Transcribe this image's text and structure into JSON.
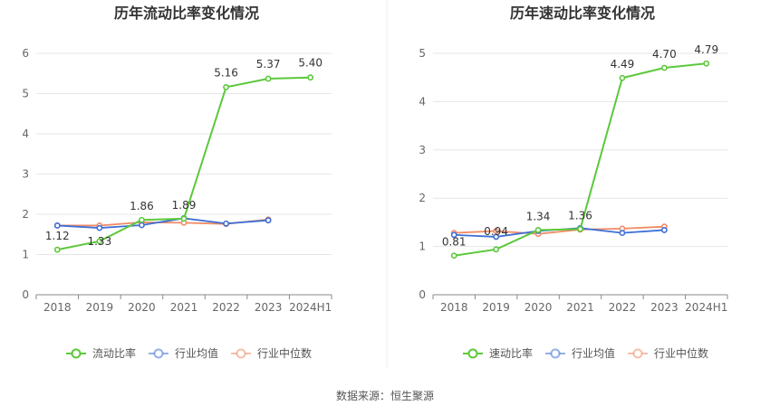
{
  "source": "数据来源：恒生聚源",
  "chart_data": [
    {
      "type": "line",
      "title": "历年流动比率变化情况",
      "categories": [
        "2018",
        "2019",
        "2020",
        "2021",
        "2022",
        "2023",
        "2024H1"
      ],
      "ylim": [
        0,
        6
      ],
      "yticks": [
        "0",
        "1",
        "2",
        "3",
        "4",
        "5",
        "6"
      ],
      "grid": true,
      "legend_position": "bottom",
      "series": [
        {
          "name": "流动比率",
          "color": "#5cc83a",
          "values": [
            1.12,
            1.33,
            1.86,
            1.89,
            5.16,
            5.37,
            5.4
          ],
          "labels": [
            "1.12",
            "1.33",
            "1.86",
            "1.89",
            "5.16",
            "5.37",
            "5.40"
          ]
        },
        {
          "name": "行业均值",
          "color": "#3d6fd6",
          "values": [
            1.72,
            1.66,
            1.73,
            1.9,
            1.77,
            1.85,
            null
          ]
        },
        {
          "name": "行业中位数",
          "color": "#f08a64",
          "values": [
            1.72,
            1.72,
            1.8,
            1.79,
            1.76,
            1.87,
            null
          ]
        }
      ]
    },
    {
      "type": "line",
      "title": "历年速动比率变化情况",
      "categories": [
        "2018",
        "2019",
        "2020",
        "2021",
        "2022",
        "2023",
        "2024H1"
      ],
      "ylim": [
        0,
        5
      ],
      "yticks": [
        "0",
        "1",
        "2",
        "3",
        "4",
        "5"
      ],
      "grid": true,
      "legend_position": "bottom",
      "series": [
        {
          "name": "速动比率",
          "color": "#5cc83a",
          "values": [
            0.81,
            0.94,
            1.34,
            1.36,
            4.49,
            4.7,
            4.79
          ],
          "labels": [
            "0.81",
            "0.94",
            "1.34",
            "1.36",
            "4.49",
            "4.70",
            "4.79"
          ]
        },
        {
          "name": "行业均值",
          "color": "#3d6fd6",
          "values": [
            1.24,
            1.2,
            1.32,
            1.38,
            1.28,
            1.34,
            null
          ]
        },
        {
          "name": "行业中位数",
          "color": "#f08a64",
          "values": [
            1.28,
            1.32,
            1.26,
            1.35,
            1.37,
            1.41,
            null
          ]
        }
      ]
    }
  ]
}
